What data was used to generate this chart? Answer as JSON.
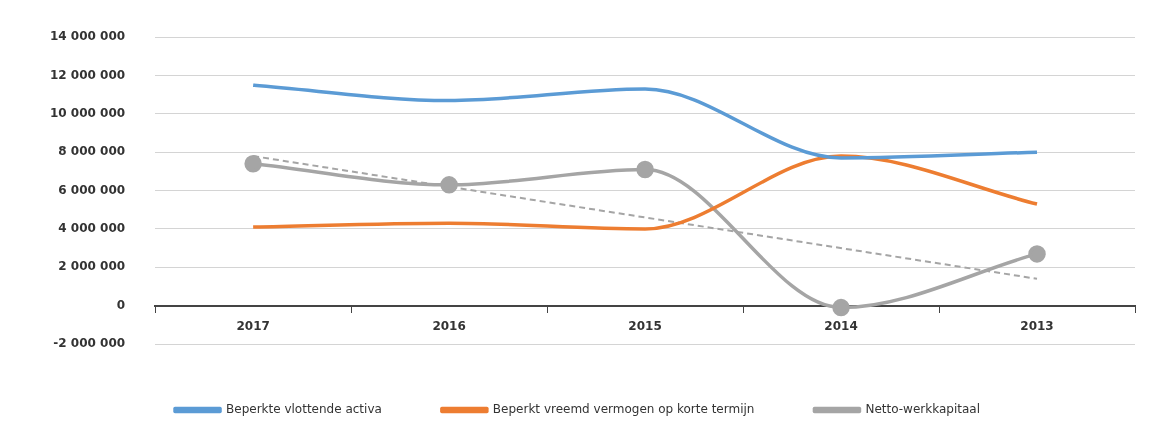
{
  "chart_data": {
    "type": "line",
    "categories": [
      "2017",
      "2016",
      "2015",
      "2014",
      "2013"
    ],
    "series": [
      {
        "name": "Beperkte vlottende activa",
        "color": "#5b9bd5",
        "marker": "none",
        "values": [
          11500000,
          10700000,
          11300000,
          7700000,
          8000000
        ]
      },
      {
        "name": "Beperkt vreemd vermogen op korte termijn",
        "color": "#ed7d31",
        "marker": "none",
        "values": [
          4100000,
          4300000,
          4000000,
          7800000,
          5300000
        ]
      },
      {
        "name": "Netto-werkkapitaal",
        "color": "#a5a5a5",
        "marker": "circle",
        "values": [
          7400000,
          6300000,
          7100000,
          -100000,
          2700000
        ]
      },
      {
        "color": "#a5a5a5",
        "marker": "none",
        "line_style": "dashed",
        "values": [
          7800000,
          null,
          null,
          null,
          1400000
        ]
      }
    ],
    "ylim": [
      -2000000,
      14000000
    ],
    "yticks": [
      {
        "value": -2000000,
        "label": "-2 000 000"
      },
      {
        "value": 0,
        "label": "0"
      },
      {
        "value": 2000000,
        "label": "2 000 000"
      },
      {
        "value": 4000000,
        "label": "4 000 000"
      },
      {
        "value": 6000000,
        "label": "6 000 000"
      },
      {
        "value": 8000000,
        "label": "8 000 000"
      },
      {
        "value": 10000000,
        "label": "10 000 000"
      },
      {
        "value": 12000000,
        "label": "12 000 000"
      },
      {
        "value": 14000000,
        "label": "14 000 000"
      }
    ],
    "grid": "y",
    "legend": "bottom"
  }
}
